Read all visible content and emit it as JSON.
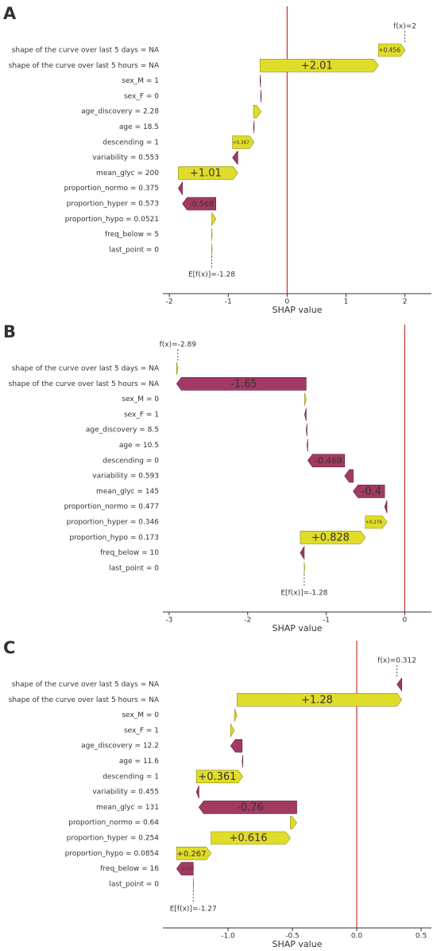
{
  "chart_data": [
    {
      "type": "waterfall",
      "panel": "A",
      "xlabel": "SHAP value",
      "features": [
        "shape of the curve over last 5 days = NA",
        "shape of the curve over last 5 hours = NA",
        "sex_M = 1",
        "sex_F = 0",
        "age_discovery = 2.28",
        "age = 18.5",
        "descending = 1",
        "variability = 0.553",
        "mean_glyc = 200",
        "proportion_normo = 0.375",
        "proportion_hyper = 0.573",
        "proportion_hypo = 0.0521",
        "freq_below = 5",
        "last_point = 0"
      ],
      "values": [
        0.456,
        2.01,
        -0.01,
        -0.01,
        0.13,
        -0.01,
        0.367,
        -0.09,
        1.01,
        -0.07,
        -0.568,
        0.07,
        0,
        0
      ],
      "value_labels": [
        "+0.456",
        "+2.01",
        null,
        null,
        null,
        null,
        "+0.367",
        null,
        "+1.01",
        null,
        "-0.568",
        null,
        null,
        null
      ],
      "base_value": -1.28,
      "base_label": "E[f(x)]=-1.28",
      "output_value": 2,
      "output_label": "f(x)=2",
      "xlim": [
        -2.11,
        2.45
      ],
      "xticks": [
        -2,
        -1,
        0,
        1,
        2
      ],
      "positive_color": "#e0dc2a",
      "negative_color": "#a23a63"
    },
    {
      "type": "waterfall",
      "panel": "B",
      "xlabel": "SHAP value",
      "features": [
        "shape of the curve over last 5 days = NA",
        "shape of the curve over last 5 hours = NA",
        "sex_M = 0",
        "sex_F = 1",
        "age_discovery = 8.5",
        "age = 10.5",
        "descending = 0",
        "variability = 0.593",
        "mean_glyc = 145",
        "proportion_normo = 0.477",
        "proportion_hyper = 0.346",
        "proportion_hypo = 0.173",
        "freq_below = 10",
        "last_point = 0"
      ],
      "values": [
        0.015,
        -1.65,
        0.02,
        -0.02,
        -0.01,
        -0.01,
        -0.469,
        -0.11,
        -0.4,
        -0.03,
        0.276,
        0.828,
        -0.05,
        0
      ],
      "value_labels": [
        null,
        "-1.65",
        null,
        null,
        null,
        null,
        "-0.469",
        null,
        "-0.4",
        null,
        "+0.276",
        "+0.828",
        null,
        null
      ],
      "base_value": -1.28,
      "base_label": "E[f(x)]=-1.28",
      "output_value": -2.89,
      "output_label": "f(x)=-2.89",
      "xlim": [
        -3.08,
        0.34
      ],
      "xticks": [
        -3,
        -2,
        -1,
        0
      ],
      "positive_color": "#e0dc2a",
      "negative_color": "#a23a63"
    },
    {
      "type": "waterfall",
      "panel": "C",
      "xlabel": "SHAP value",
      "features": [
        "shape of the curve over last 5 days = NA",
        "shape of the curve over last 5 hours = NA",
        "sex_M = 0",
        "sex_F = 1",
        "age_discovery = 12.2",
        "age = 11.6",
        "descending = 1",
        "variability = 0.455",
        "mean_glyc = 131",
        "proportion_normo = 0.64",
        "proportion_hyper = 0.254",
        "proportion_hypo = 0.0854",
        "freq_below = 16",
        "last_point = 0"
      ],
      "values": [
        -0.038,
        1.28,
        0.02,
        0.03,
        -0.09,
        -0.005,
        0.361,
        -0.02,
        -0.76,
        0.05,
        0.616,
        0.267,
        -0.129,
        0
      ],
      "value_labels": [
        null,
        "+1.28",
        null,
        null,
        null,
        null,
        "+0.361",
        null,
        "-0.76",
        null,
        "+0.616",
        "+0.267",
        "-0.129",
        null
      ],
      "base_value": -1.27,
      "base_label": "E[f(x)]=-1.27",
      "output_value": 0.312,
      "output_label": "f(x)=0.312",
      "xlim": [
        -1.506,
        0.58
      ],
      "xticks": [
        {
          "value": -1,
          "label": "-1.0"
        },
        {
          "value": -0.5,
          "label": "-0.5"
        },
        {
          "value": 0,
          "label": "0.0"
        },
        0.5
      ],
      "positive_color": "#e0dc2a",
      "negative_color": "#a23a63"
    }
  ]
}
